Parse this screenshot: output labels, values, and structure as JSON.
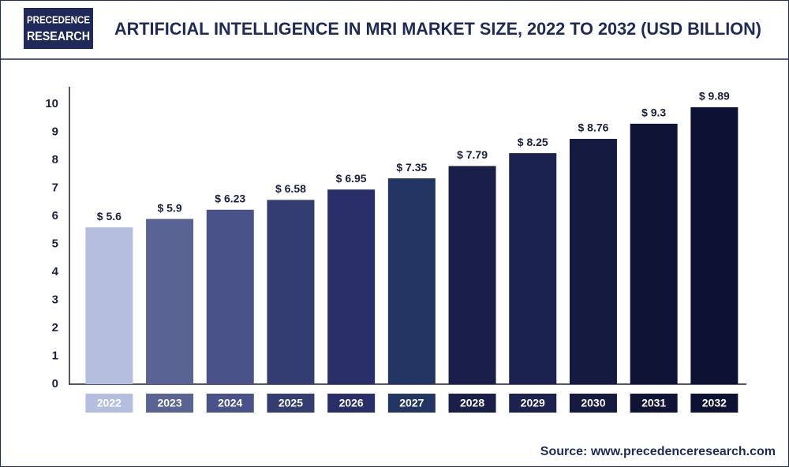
{
  "header": {
    "logo": [
      "PRECEDENCE",
      "RESEARCH"
    ]
  },
  "chart_data": {
    "type": "bar",
    "title": "ARTIFICIAL INTELLIGENCE IN MRI MARKET SIZE, 2022 TO 2032 (USD BILLION)",
    "categories": [
      "2022",
      "2023",
      "2024",
      "2025",
      "2026",
      "2027",
      "2028",
      "2029",
      "2030",
      "2031",
      "2032"
    ],
    "values": [
      5.6,
      5.9,
      6.23,
      6.58,
      6.95,
      7.35,
      7.79,
      8.25,
      8.76,
      9.3,
      9.89
    ],
    "value_labels": [
      "$ 5.6",
      "$ 5.9",
      "$ 6.23",
      "$ 6.58",
      "$ 6.95",
      "$ 7.35",
      "$ 7.79",
      "$ 8.25",
      "$ 8.76",
      "$ 9.3",
      "$ 9.89"
    ],
    "colors": [
      "#b4bfe0",
      "#5a6494",
      "#4a528a",
      "#333d72",
      "#272e68",
      "#233563",
      "#1a1f4a",
      "#1b2250",
      "#151a40",
      "#0f1335",
      "#0d1133"
    ],
    "ylim": [
      0,
      10
    ],
    "yticks": [
      0,
      1,
      2,
      3,
      4,
      5,
      6,
      7,
      8,
      9,
      10
    ],
    "grid": false,
    "source": "Source: www.precedenceresearch.com"
  }
}
